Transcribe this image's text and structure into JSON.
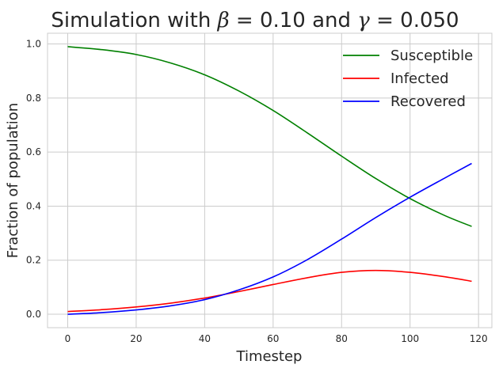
{
  "chart_data": {
    "type": "line",
    "title": {
      "prefix": "Simulation with ",
      "beta_symbol": "β",
      "beta_value": " = 0.10",
      "middle": " and ",
      "gamma_symbol": "γ",
      "gamma_value": " = 0.050"
    },
    "xlabel": "Timestep",
    "ylabel": "Fraction of population",
    "xlim": [
      -5.9,
      123.9
    ],
    "ylim": [
      -0.0497,
      1.0397
    ],
    "x_ticks": [
      0,
      20,
      40,
      60,
      80,
      100,
      120
    ],
    "x_tick_labels": [
      "0",
      "20",
      "40",
      "60",
      "80",
      "100",
      "120"
    ],
    "y_ticks": [
      0.0,
      0.2,
      0.4,
      0.6,
      0.8,
      1.0
    ],
    "y_tick_labels": [
      "0.0",
      "0.2",
      "0.4",
      "0.6",
      "0.8",
      "1.0"
    ],
    "grid": true,
    "legend_position": "top-right",
    "series": [
      {
        "name": "Susceptible",
        "color": "#008000",
        "points": [
          [
            0,
            0.99
          ],
          [
            10,
            0.979
          ],
          [
            20,
            0.961
          ],
          [
            30,
            0.93
          ],
          [
            40,
            0.886
          ],
          [
            50,
            0.826
          ],
          [
            60,
            0.754
          ],
          [
            70,
            0.671
          ],
          [
            80,
            0.585
          ],
          [
            90,
            0.502
          ],
          [
            100,
            0.428
          ],
          [
            110,
            0.366
          ],
          [
            118,
            0.325
          ]
        ]
      },
      {
        "name": "Infected",
        "color": "#ff0000",
        "points": [
          [
            0,
            0.01
          ],
          [
            10,
            0.017
          ],
          [
            20,
            0.027
          ],
          [
            30,
            0.041
          ],
          [
            40,
            0.06
          ],
          [
            50,
            0.084
          ],
          [
            60,
            0.11
          ],
          [
            70,
            0.135
          ],
          [
            80,
            0.155
          ],
          [
            90,
            0.162
          ],
          [
            100,
            0.155
          ],
          [
            110,
            0.139
          ],
          [
            118,
            0.122
          ]
        ]
      },
      {
        "name": "Recovered",
        "color": "#0000ff",
        "points": [
          [
            0,
            0.0
          ],
          [
            10,
            0.006
          ],
          [
            20,
            0.016
          ],
          [
            30,
            0.031
          ],
          [
            40,
            0.054
          ],
          [
            50,
            0.09
          ],
          [
            60,
            0.138
          ],
          [
            70,
            0.202
          ],
          [
            80,
            0.278
          ],
          [
            90,
            0.358
          ],
          [
            100,
            0.433
          ],
          [
            110,
            0.503
          ],
          [
            118,
            0.558
          ]
        ]
      }
    ]
  }
}
